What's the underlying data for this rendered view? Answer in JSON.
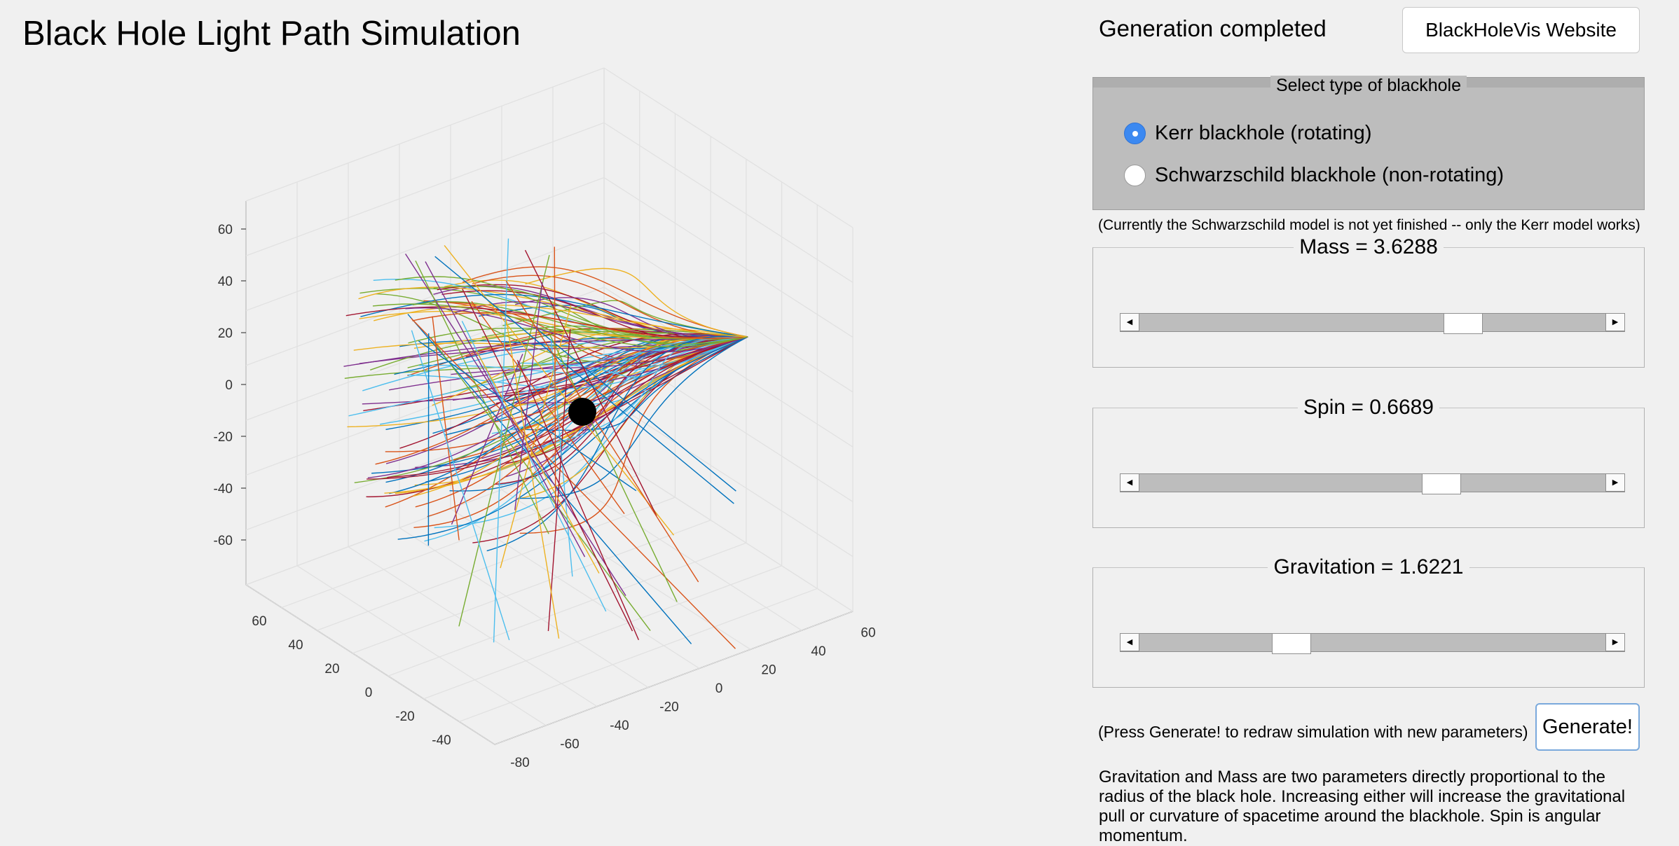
{
  "app": {
    "title": "Black Hole Light Path Simulation"
  },
  "status": {
    "text": "Generation completed"
  },
  "buttons": {
    "website": "BlackHoleVis Website",
    "generate": "Generate!"
  },
  "blackhole_type": {
    "title": "Select type of blackhole",
    "options": [
      {
        "label": "Kerr blackhole (rotating)",
        "selected": true
      },
      {
        "label": "Schwarzschild blackhole (non-rotating)",
        "selected": false
      }
    ],
    "note": "(Currently the Schwarzschild model is not yet finished -- only the Kerr model works)"
  },
  "sliders": {
    "mass": {
      "label": "Mass = 3.6288",
      "position": 0.71
    },
    "spin": {
      "label": "Spin = 0.6689",
      "position": 0.66
    },
    "gravitation": {
      "label": "Gravitation = 1.6221",
      "position": 0.31
    }
  },
  "generate_hint": "(Press Generate! to redraw simulation with new parameters)",
  "description": "Gravitation and Mass are two parameters directly proportional to the radius of the black hole. Increasing either will increase the gravitational pull or curvature of spacetime around the blackhole. Spin is angular momentum.",
  "plot": {
    "z_ticks": [
      "60",
      "40",
      "20",
      "0",
      "-20",
      "-40",
      "-60"
    ],
    "left_ticks": [
      "60",
      "40",
      "20",
      "0",
      "-20",
      "-40"
    ],
    "right_ticks": [
      "-80",
      "-60",
      "-40",
      "-20",
      "0",
      "20",
      "40",
      "60"
    ],
    "line_colors": [
      "#0072bd",
      "#d95319",
      "#edb120",
      "#7e2f8e",
      "#77ac30",
      "#4dbeee",
      "#a2142f"
    ],
    "black_hole_color": "#000000"
  }
}
